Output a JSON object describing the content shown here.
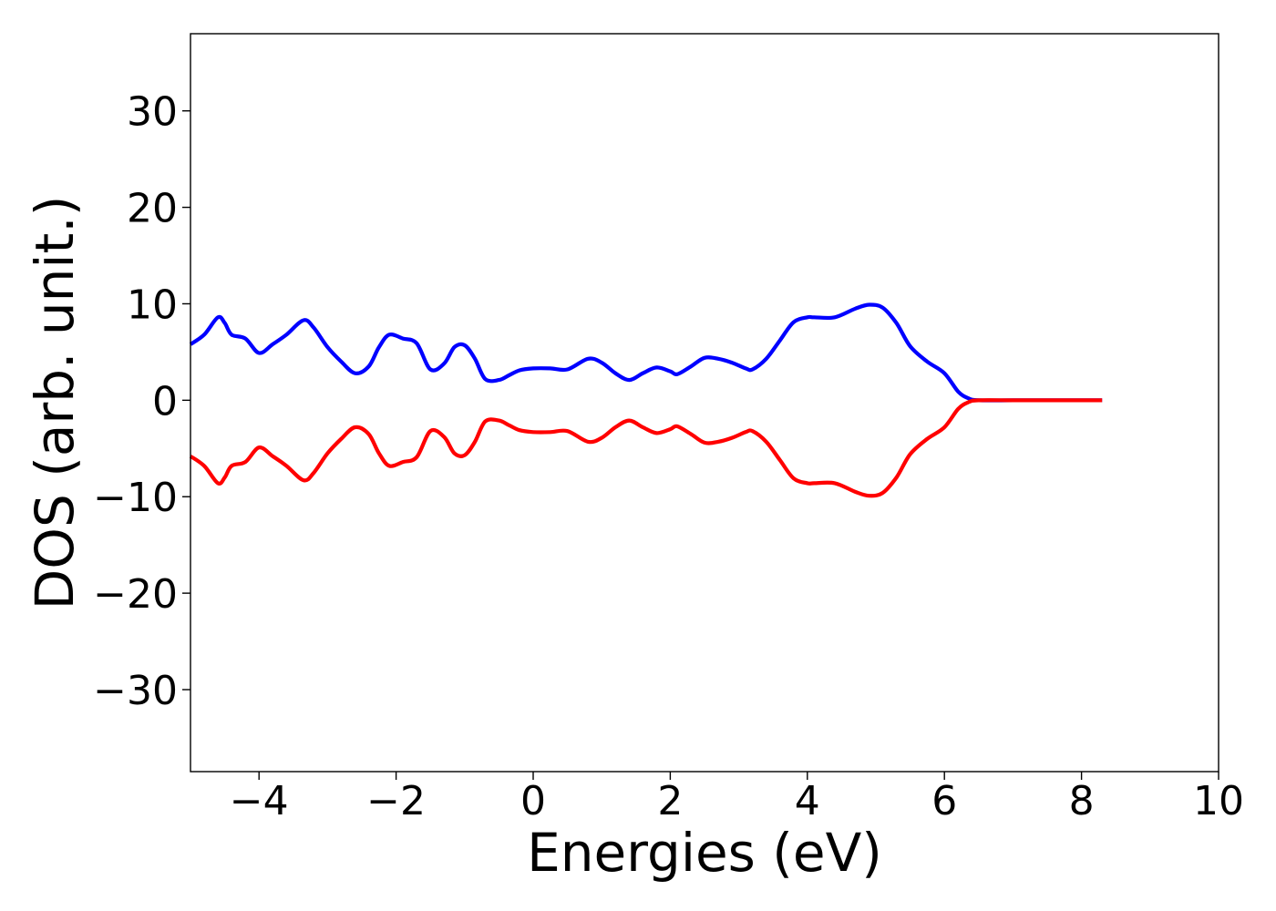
{
  "chart_data": {
    "type": "line",
    "title": "",
    "xlabel": "Energies (eV)",
    "ylabel": "DOS (arb. unit.)",
    "xlim": [
      -5,
      10
    ],
    "ylim": [
      -38.5,
      38
    ],
    "x_ticks": [
      -4,
      -2,
      0,
      2,
      4,
      6,
      8,
      10
    ],
    "x_tick_labels": [
      "−4",
      "−2",
      "0",
      "2",
      "4",
      "6",
      "8",
      "10"
    ],
    "y_ticks": [
      -30,
      -20,
      -10,
      0,
      10,
      20,
      30
    ],
    "y_tick_labels": [
      "−30",
      "−20",
      "−10",
      "0",
      "10",
      "20",
      "30"
    ],
    "grid": false,
    "legend": "none",
    "series": [
      {
        "color": "#0000ff",
        "x": [
          -5.0,
          -4.8,
          -4.6,
          -4.5,
          -4.4,
          -4.2,
          -4.0,
          -3.8,
          -3.6,
          -3.35,
          -3.2,
          -3.0,
          -2.8,
          -2.6,
          -2.4,
          -2.25,
          -2.1,
          -1.9,
          -1.7,
          -1.5,
          -1.3,
          -1.15,
          -1.0,
          -0.85,
          -0.7,
          -0.5,
          -0.35,
          -0.2,
          0.0,
          0.25,
          0.5,
          0.8,
          1.0,
          1.2,
          1.4,
          1.6,
          1.8,
          2.0,
          2.1,
          2.3,
          2.5,
          2.7,
          2.9,
          3.1,
          3.2,
          3.4,
          3.6,
          3.8,
          4.0,
          4.1,
          4.4,
          4.7,
          4.9,
          5.1,
          5.3,
          5.5,
          5.75,
          6.0,
          6.2,
          6.35,
          6.5,
          7.0,
          7.5,
          8.0,
          8.3
        ],
        "values": [
          5.8,
          6.8,
          8.6,
          8.0,
          6.8,
          6.4,
          4.9,
          5.8,
          6.8,
          8.3,
          7.5,
          5.5,
          4.0,
          2.8,
          3.5,
          5.5,
          6.8,
          6.4,
          5.9,
          3.2,
          3.8,
          5.5,
          5.7,
          4.3,
          2.2,
          2.1,
          2.6,
          3.1,
          3.3,
          3.3,
          3.2,
          4.3,
          3.9,
          2.8,
          2.1,
          2.8,
          3.4,
          3.0,
          2.7,
          3.5,
          4.4,
          4.3,
          3.9,
          3.3,
          3.2,
          4.3,
          6.2,
          8.1,
          8.6,
          8.6,
          8.6,
          9.5,
          9.9,
          9.6,
          8.0,
          5.6,
          4.0,
          2.8,
          0.9,
          0.2,
          0.0,
          0.0,
          0.0,
          0.0,
          0.0
        ]
      },
      {
        "color": "#ff0000",
        "x": [
          -5.0,
          -4.8,
          -4.6,
          -4.5,
          -4.4,
          -4.2,
          -4.0,
          -3.8,
          -3.6,
          -3.35,
          -3.2,
          -3.0,
          -2.8,
          -2.6,
          -2.4,
          -2.25,
          -2.1,
          -1.9,
          -1.7,
          -1.5,
          -1.3,
          -1.15,
          -1.0,
          -0.85,
          -0.7,
          -0.5,
          -0.35,
          -0.2,
          0.0,
          0.25,
          0.5,
          0.8,
          1.0,
          1.2,
          1.4,
          1.6,
          1.8,
          2.0,
          2.1,
          2.3,
          2.5,
          2.7,
          2.9,
          3.1,
          3.2,
          3.4,
          3.6,
          3.8,
          4.0,
          4.1,
          4.4,
          4.7,
          4.9,
          5.1,
          5.3,
          5.5,
          5.75,
          6.0,
          6.2,
          6.35,
          6.5,
          7.0,
          7.5,
          8.0,
          8.3
        ],
        "values": [
          -5.8,
          -6.8,
          -8.6,
          -8.0,
          -6.8,
          -6.4,
          -4.9,
          -5.8,
          -6.8,
          -8.3,
          -7.5,
          -5.5,
          -4.0,
          -2.8,
          -3.5,
          -5.5,
          -6.8,
          -6.4,
          -5.9,
          -3.2,
          -3.8,
          -5.5,
          -5.7,
          -4.3,
          -2.2,
          -2.1,
          -2.6,
          -3.1,
          -3.3,
          -3.3,
          -3.2,
          -4.3,
          -3.9,
          -2.8,
          -2.1,
          -2.8,
          -3.4,
          -3.0,
          -2.7,
          -3.5,
          -4.4,
          -4.3,
          -3.9,
          -3.3,
          -3.2,
          -4.3,
          -6.2,
          -8.1,
          -8.6,
          -8.6,
          -8.6,
          -9.5,
          -9.9,
          -9.6,
          -8.0,
          -5.6,
          -4.0,
          -2.8,
          -0.9,
          -0.2,
          0.0,
          0.0,
          0.0,
          0.0,
          0.0
        ]
      }
    ]
  }
}
